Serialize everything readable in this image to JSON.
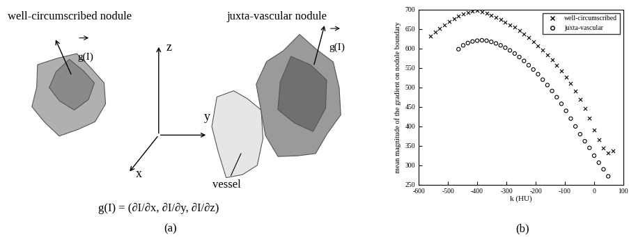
{
  "chart_data": {
    "type": "scatter",
    "xlabel": "k (HU)",
    "ylabel": "mean magnitude of the gradient on nodule boundary",
    "panel_label": "(b)",
    "xlim": [
      -600,
      100
    ],
    "xticks": [
      -600,
      -500,
      -400,
      -300,
      -200,
      -100,
      0,
      100
    ],
    "ylim": [
      250,
      700
    ],
    "yticks": [
      250,
      300,
      350,
      400,
      450,
      500,
      550,
      600,
      650,
      700
    ],
    "legend": "upper right",
    "series": [
      {
        "name": "well-circumscribed",
        "color": "#000000",
        "marker": "x",
        "x": [
          -560,
          -544,
          -528,
          -512,
          -496,
          -480,
          -464,
          -448,
          -432,
          -416,
          -400,
          -384,
          -368,
          -352,
          -336,
          -320,
          -304,
          -288,
          -272,
          -256,
          -240,
          -224,
          -208,
          -192,
          -176,
          -160,
          -144,
          -128,
          -112,
          -96,
          -80,
          -64,
          -48,
          -32,
          -16,
          0,
          16,
          32,
          48,
          64
        ],
        "values": [
          632,
          642,
          652,
          661,
          669,
          677,
          684,
          689,
          692,
          695,
          697,
          694,
          690,
          685,
          680,
          674,
          668,
          661,
          654,
          646,
          637,
          628,
          618,
          607,
          596,
          584,
          571,
          557,
          543,
          527,
          510,
          491,
          470,
          447,
          422,
          390,
          365,
          345,
          332,
          338
        ]
      },
      {
        "name": "juxta-vascular",
        "color": "#000000",
        "marker": "o",
        "x": [
          -464,
          -448,
          -432,
          -416,
          -400,
          -384,
          -368,
          -352,
          -336,
          -320,
          -304,
          -288,
          -272,
          -256,
          -240,
          -224,
          -208,
          -192,
          -176,
          -160,
          -144,
          -128,
          -112,
          -96,
          -80,
          -64,
          -48,
          -32,
          -16,
          0,
          16,
          32,
          48
        ],
        "values": [
          598,
          608,
          614,
          618,
          620,
          621,
          620,
          617,
          613,
          608,
          602,
          595,
          587,
          578,
          568,
          557,
          546,
          534,
          520,
          506,
          491,
          475,
          458,
          440,
          420,
          400,
          380,
          362,
          345,
          325,
          307,
          290,
          272
        ]
      }
    ]
  },
  "diagram": {
    "panel_label": "(a)",
    "nodules": [
      {
        "label": "well-circumscribed nodule",
        "vector": "g(I)"
      },
      {
        "label": "juxta-vascular nodule",
        "vector": "g(I)",
        "vessel": "vessel"
      }
    ],
    "axes": [
      "x",
      "y",
      "z"
    ],
    "formula": "g(I) = (∂I/∂x, ∂I/∂y, ∂I/∂z)"
  }
}
